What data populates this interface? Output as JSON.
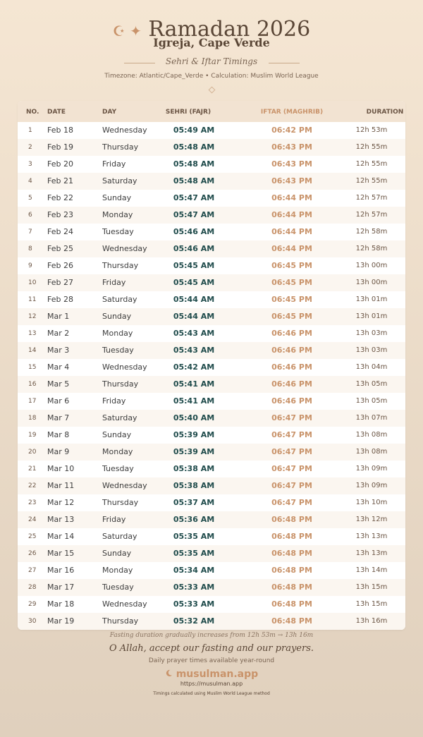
{
  "header": {
    "ornament": "☪ ✦",
    "title": "Ramadan 2026",
    "location": "Igreja, Cape Verde",
    "subtitle": "Sehri & Iftar Timings",
    "meta": "Timezone: Atlantic/Cape_Verde • Calculation: Muslim World League"
  },
  "table": {
    "columns": [
      "NO.",
      "DATE",
      "DAY",
      "SEHRI (FAJR)",
      "IFTAR (MAGHRIB)",
      "DURATION"
    ],
    "rows": [
      [
        1,
        "Feb 18",
        "Wednesday",
        "05:49 AM",
        "06:42 PM",
        "12h 53m"
      ],
      [
        2,
        "Feb 19",
        "Thursday",
        "05:48 AM",
        "06:43 PM",
        "12h 55m"
      ],
      [
        3,
        "Feb 20",
        "Friday",
        "05:48 AM",
        "06:43 PM",
        "12h 55m"
      ],
      [
        4,
        "Feb 21",
        "Saturday",
        "05:48 AM",
        "06:43 PM",
        "12h 55m"
      ],
      [
        5,
        "Feb 22",
        "Sunday",
        "05:47 AM",
        "06:44 PM",
        "12h 57m"
      ],
      [
        6,
        "Feb 23",
        "Monday",
        "05:47 AM",
        "06:44 PM",
        "12h 57m"
      ],
      [
        7,
        "Feb 24",
        "Tuesday",
        "05:46 AM",
        "06:44 PM",
        "12h 58m"
      ],
      [
        8,
        "Feb 25",
        "Wednesday",
        "05:46 AM",
        "06:44 PM",
        "12h 58m"
      ],
      [
        9,
        "Feb 26",
        "Thursday",
        "05:45 AM",
        "06:45 PM",
        "13h 00m"
      ],
      [
        10,
        "Feb 27",
        "Friday",
        "05:45 AM",
        "06:45 PM",
        "13h 00m"
      ],
      [
        11,
        "Feb 28",
        "Saturday",
        "05:44 AM",
        "06:45 PM",
        "13h 01m"
      ],
      [
        12,
        "Mar 1",
        "Sunday",
        "05:44 AM",
        "06:45 PM",
        "13h 01m"
      ],
      [
        13,
        "Mar 2",
        "Monday",
        "05:43 AM",
        "06:46 PM",
        "13h 03m"
      ],
      [
        14,
        "Mar 3",
        "Tuesday",
        "05:43 AM",
        "06:46 PM",
        "13h 03m"
      ],
      [
        15,
        "Mar 4",
        "Wednesday",
        "05:42 AM",
        "06:46 PM",
        "13h 04m"
      ],
      [
        16,
        "Mar 5",
        "Thursday",
        "05:41 AM",
        "06:46 PM",
        "13h 05m"
      ],
      [
        17,
        "Mar 6",
        "Friday",
        "05:41 AM",
        "06:46 PM",
        "13h 05m"
      ],
      [
        18,
        "Mar 7",
        "Saturday",
        "05:40 AM",
        "06:47 PM",
        "13h 07m"
      ],
      [
        19,
        "Mar 8",
        "Sunday",
        "05:39 AM",
        "06:47 PM",
        "13h 08m"
      ],
      [
        20,
        "Mar 9",
        "Monday",
        "05:39 AM",
        "06:47 PM",
        "13h 08m"
      ],
      [
        21,
        "Mar 10",
        "Tuesday",
        "05:38 AM",
        "06:47 PM",
        "13h 09m"
      ],
      [
        22,
        "Mar 11",
        "Wednesday",
        "05:38 AM",
        "06:47 PM",
        "13h 09m"
      ],
      [
        23,
        "Mar 12",
        "Thursday",
        "05:37 AM",
        "06:47 PM",
        "13h 10m"
      ],
      [
        24,
        "Mar 13",
        "Friday",
        "05:36 AM",
        "06:48 PM",
        "13h 12m"
      ],
      [
        25,
        "Mar 14",
        "Saturday",
        "05:35 AM",
        "06:48 PM",
        "13h 13m"
      ],
      [
        26,
        "Mar 15",
        "Sunday",
        "05:35 AM",
        "06:48 PM",
        "13h 13m"
      ],
      [
        27,
        "Mar 16",
        "Monday",
        "05:34 AM",
        "06:48 PM",
        "13h 14m"
      ],
      [
        28,
        "Mar 17",
        "Tuesday",
        "05:33 AM",
        "06:48 PM",
        "13h 15m"
      ],
      [
        29,
        "Mar 18",
        "Wednesday",
        "05:33 AM",
        "06:48 PM",
        "13h 15m"
      ],
      [
        30,
        "Mar 19",
        "Thursday",
        "05:32 AM",
        "06:48 PM",
        "13h 16m"
      ]
    ]
  },
  "footer": {
    "note": "Fasting duration gradually increases from 12h 53m → 13h 16m",
    "prayer": "O Allah, accept our fasting and our prayers.",
    "tagline": "Daily prayer times available year-round",
    "brand": "musulman.app",
    "url": "https://musulman.app",
    "credit": "Timings calculated using Muslim World League method"
  }
}
